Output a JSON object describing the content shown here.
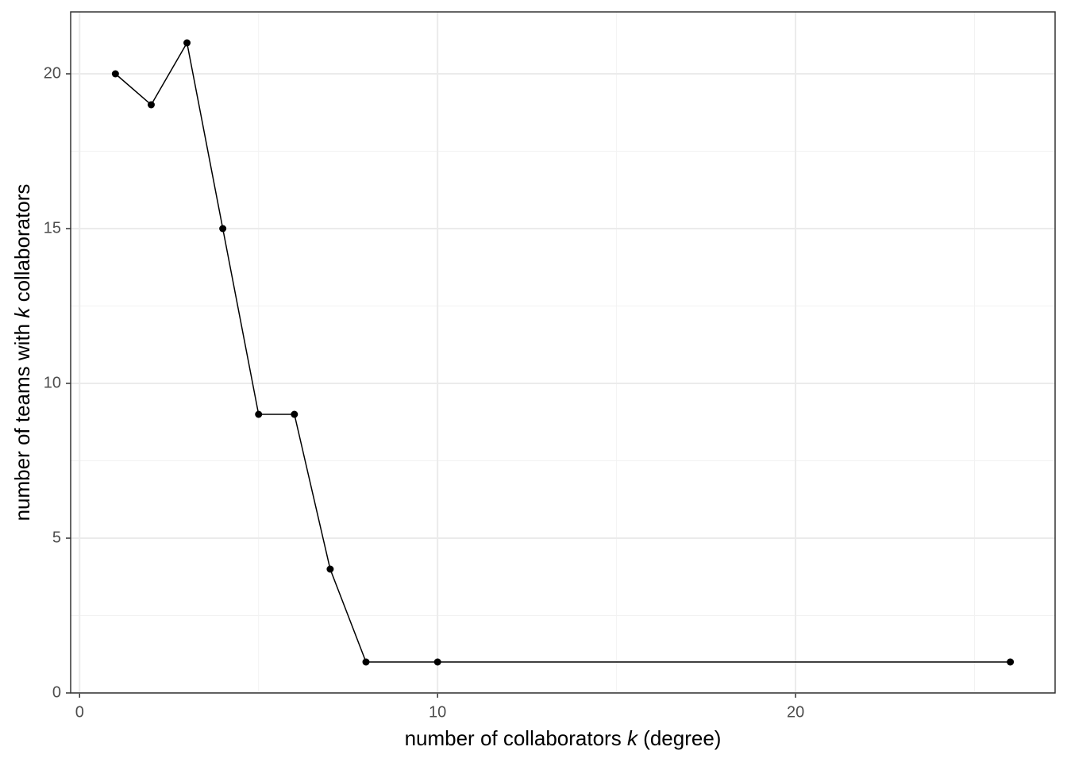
{
  "chart_data": {
    "type": "line",
    "xlabel": [
      "number of collaborators ",
      "k",
      " (degree)"
    ],
    "ylabel": [
      "number of teams with ",
      "k",
      " collaborators"
    ],
    "x": [
      1,
      2,
      3,
      4,
      5,
      6,
      7,
      8,
      10,
      26
    ],
    "series": [
      {
        "color": "#000000",
        "values": [
          20,
          19,
          21,
          15,
          9,
          9,
          4,
          1,
          1,
          1
        ]
      }
    ],
    "xlim": [
      -0.25,
      27.25
    ],
    "ylim": [
      0,
      22
    ],
    "xticks": [
      0,
      10,
      20
    ],
    "yticks": [
      0,
      5,
      10,
      15,
      20
    ],
    "xminor": [
      5,
      15,
      25
    ],
    "yminor": [
      2.5,
      7.5,
      12.5,
      17.5
    ],
    "grid": true
  }
}
